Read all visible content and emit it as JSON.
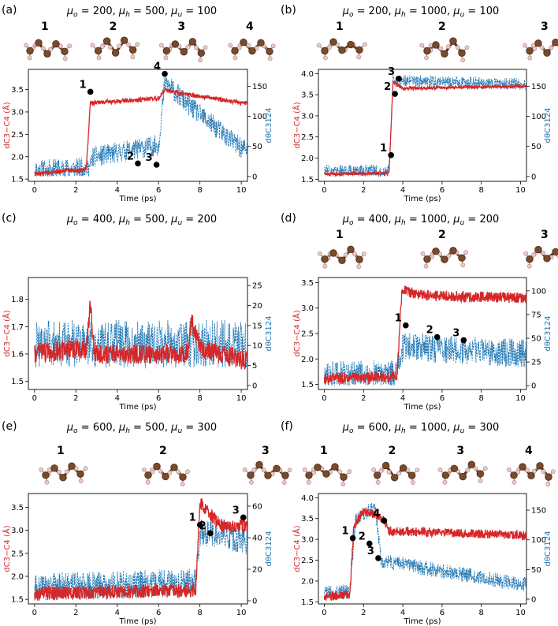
{
  "figure": {
    "colors": {
      "dist": "#d62728",
      "dihedral": "#1f77b4",
      "atom_c": "#7a4a2a",
      "atom_h": "#e8c8c8"
    }
  },
  "chart_data": [
    {
      "id": "a",
      "type": "line",
      "panel_label": "(a)",
      "params_text": "μo = 200, μh = 500, μu = 100",
      "mol_labels": [
        "1",
        "2",
        "3",
        "4"
      ],
      "xlabel": "Time (ps)",
      "ylabel_left": "dC3−C4 (Å)",
      "ylabel_right": "dθC3124",
      "xlim": [
        -0.3,
        10.3
      ],
      "xticks": [
        0,
        2,
        4,
        6,
        8,
        10
      ],
      "xtick_labels": [
        "0",
        "2",
        "4",
        "6",
        "8",
        "10"
      ],
      "ylim_left": [
        1.45,
        3.95
      ],
      "yticks_left": [
        1.5,
        2.0,
        2.5,
        3.0,
        3.5
      ],
      "ytick_labels_left": [
        "1.5",
        "2.0",
        "2.5",
        "3.0",
        "3.5"
      ],
      "ylim_right": [
        -8,
        178
      ],
      "yticks_right": [
        0,
        50,
        100,
        150
      ],
      "ytick_labels_right": [
        "0",
        "50",
        "100",
        "150"
      ],
      "series": [
        {
          "name": "dC3-C4",
          "axis": "left",
          "segments": [
            [
              0,
              1.62
            ],
            [
              2.5,
              1.72
            ],
            [
              2.7,
              3.2
            ],
            [
              6.0,
              3.3
            ],
            [
              6.3,
              3.5
            ],
            [
              7.0,
              3.42
            ],
            [
              10.0,
              3.2
            ]
          ],
          "noise": 0.08
        },
        {
          "name": "dihedral",
          "axis": "right",
          "segments": [
            [
              0,
              3
            ],
            [
              2.7,
              8
            ],
            [
              2.8,
              25
            ],
            [
              6.0,
              45
            ],
            [
              6.3,
              150
            ],
            [
              7.5,
              110
            ],
            [
              10.0,
              40
            ]
          ],
          "noise": 35
        }
      ],
      "points": [
        {
          "label": "1",
          "t": 2.7,
          "y": 3.45
        },
        {
          "label": "2",
          "t": 5.0,
          "y": 1.85
        },
        {
          "label": "3",
          "t": 5.9,
          "y": 1.82
        },
        {
          "label": "4",
          "t": 6.3,
          "y": 3.85
        }
      ]
    },
    {
      "id": "b",
      "type": "line",
      "panel_label": "(b)",
      "params_text": "μo = 200, μh = 1000, μu = 100",
      "mol_labels": [
        "1",
        "2",
        "3"
      ],
      "xlabel": "Time (ps)",
      "ylabel_left": "dC3−C4 (Å)",
      "ylabel_right": "dθC3124",
      "xlim": [
        -0.3,
        10.3
      ],
      "xticks": [
        0,
        2,
        4,
        6,
        8,
        10
      ],
      "xtick_labels": [
        "0",
        "2",
        "4",
        "6",
        "8",
        "10"
      ],
      "ylim_left": [
        1.45,
        4.1
      ],
      "yticks_left": [
        1.5,
        2.0,
        2.5,
        3.0,
        3.5,
        4.0
      ],
      "ytick_labels_left": [
        "1.5",
        "2.0",
        "2.5",
        "3.0",
        "3.5",
        "4.0"
      ],
      "ylim_right": [
        -8,
        178
      ],
      "yticks_right": [
        0,
        50,
        100,
        150
      ],
      "ytick_labels_right": [
        "0",
        "50",
        "100",
        "150"
      ],
      "series": [
        {
          "name": "dC3-C4",
          "axis": "left",
          "segments": [
            [
              0,
              1.62
            ],
            [
              3.3,
              1.65
            ],
            [
              3.5,
              3.8
            ],
            [
              4.0,
              3.65
            ],
            [
              10.0,
              3.7
            ]
          ],
          "noise": 0.06
        },
        {
          "name": "dihedral",
          "axis": "right",
          "segments": [
            [
              0,
              5
            ],
            [
              3.3,
              6
            ],
            [
              3.5,
              155
            ],
            [
              10.0,
              150
            ]
          ],
          "noise": 20
        }
      ],
      "points": [
        {
          "label": "1",
          "t": 3.4,
          "y": 2.07
        },
        {
          "label": "2",
          "t": 3.6,
          "y": 3.52
        },
        {
          "label": "3",
          "t": 3.8,
          "y": 3.88
        }
      ]
    },
    {
      "id": "c",
      "type": "line",
      "panel_label": "(c)",
      "params_text": "μo = 400, μh = 500, μu = 200",
      "mol_labels": [],
      "xlabel": "Time (ps)",
      "ylabel_left": "dC3−C4 (Å)",
      "ylabel_right": "dθC3124",
      "xlim": [
        -0.3,
        10.3
      ],
      "xticks": [
        0,
        2,
        4,
        6,
        8,
        10
      ],
      "xtick_labels": [
        "0",
        "2",
        "4",
        "6",
        "8",
        "10"
      ],
      "ylim_left": [
        1.47,
        1.88
      ],
      "yticks_left": [
        1.5,
        1.6,
        1.7,
        1.8
      ],
      "ytick_labels_left": [
        "1.5",
        "1.6",
        "1.7",
        "1.8"
      ],
      "ylim_right": [
        -1,
        27
      ],
      "yticks_right": [
        0,
        5,
        10,
        15,
        20,
        25
      ],
      "ytick_labels_right": [
        "0",
        "5",
        "10",
        "15",
        "20",
        "25"
      ],
      "series": [
        {
          "name": "dC3-C4",
          "axis": "left",
          "segments": [
            [
              0,
              1.6
            ],
            [
              2.5,
              1.62
            ],
            [
              2.7,
              1.78
            ],
            [
              2.9,
              1.6
            ],
            [
              7.4,
              1.6
            ],
            [
              7.6,
              1.72
            ],
            [
              8.0,
              1.62
            ],
            [
              10.0,
              1.58
            ]
          ],
          "noise": 0.06
        },
        {
          "name": "dihedral",
          "axis": "right",
          "segments": [
            [
              0,
              8
            ],
            [
              10.0,
              8
            ]
          ],
          "noise": 12
        }
      ],
      "points": []
    },
    {
      "id": "d",
      "type": "line",
      "panel_label": "(d)",
      "params_text": "μo = 400, μh = 1000, μu = 200",
      "mol_labels": [
        "1",
        "2",
        "3"
      ],
      "xlabel": "Time (ps)",
      "ylabel_left": "dC3−C4 (Å)",
      "ylabel_right": "dθC3124",
      "xlim": [
        -0.3,
        10.3
      ],
      "xticks": [
        0,
        2,
        4,
        6,
        8,
        10
      ],
      "xtick_labels": [
        "0",
        "2",
        "4",
        "6",
        "8",
        "10"
      ],
      "ylim_left": [
        1.4,
        3.6
      ],
      "yticks_left": [
        1.5,
        2.0,
        2.5,
        3.0,
        3.5
      ],
      "ytick_labels_left": [
        "1.5",
        "2.0",
        "2.5",
        "3.0",
        "3.5"
      ],
      "ylim_right": [
        -4,
        114
      ],
      "yticks_right": [
        0,
        25,
        50,
        75,
        100
      ],
      "ytick_labels_right": [
        "0",
        "25",
        "50",
        "75",
        "100"
      ],
      "series": [
        {
          "name": "dC3-C4",
          "axis": "left",
          "segments": [
            [
              0,
              1.62
            ],
            [
              3.7,
              1.65
            ],
            [
              3.95,
              3.35
            ],
            [
              5.0,
              3.25
            ],
            [
              10.0,
              3.2
            ]
          ],
          "noise": 0.18
        },
        {
          "name": "dihedral",
          "axis": "right",
          "segments": [
            [
              0,
              5
            ],
            [
              3.7,
              6
            ],
            [
              4.0,
              35
            ],
            [
              10.0,
              28
            ]
          ],
          "noise": 30
        }
      ],
      "points": [
        {
          "label": "1",
          "t": 4.15,
          "y": 2.66
        },
        {
          "label": "2",
          "t": 5.75,
          "y": 2.43
        },
        {
          "label": "3",
          "t": 7.1,
          "y": 2.37
        }
      ]
    },
    {
      "id": "e",
      "type": "line",
      "panel_label": "(e)",
      "params_text": "μo = 600, μh = 500, μu = 300",
      "mol_labels": [
        "1",
        "2",
        "3"
      ],
      "xlabel": "Time (ps)",
      "ylabel_left": "dC3−C4 (Å)",
      "ylabel_right": "dθC3124",
      "xlim": [
        -0.3,
        10.3
      ],
      "xticks": [
        0,
        2,
        4,
        6,
        8,
        10
      ],
      "xtick_labels": [
        "0",
        "2",
        "4",
        "6",
        "8",
        "10"
      ],
      "ylim_left": [
        1.4,
        3.8
      ],
      "yticks_left": [
        1.5,
        2.0,
        2.5,
        3.0,
        3.5
      ],
      "ytick_labels_left": [
        "1.5",
        "2.0",
        "2.5",
        "3.0",
        "3.5"
      ],
      "ylim_right": [
        -2,
        68
      ],
      "yticks_right": [
        0,
        20,
        40,
        60
      ],
      "ytick_labels_right": [
        "0",
        "20",
        "40",
        "60"
      ],
      "series": [
        {
          "name": "dC3-C4",
          "axis": "left",
          "segments": [
            [
              0,
              1.62
            ],
            [
              7.8,
              1.7
            ],
            [
              8.0,
              3.6
            ],
            [
              9.0,
              3.1
            ],
            [
              10.2,
              3.1
            ]
          ],
          "noise": 0.25
        },
        {
          "name": "dihedral",
          "axis": "right",
          "segments": [
            [
              0,
              5
            ],
            [
              7.8,
              8
            ],
            [
              8.0,
              40
            ],
            [
              10.2,
              35
            ]
          ],
          "noise": 18
        }
      ],
      "points": [
        {
          "label": "1",
          "t": 8.0,
          "y": 3.12
        },
        {
          "label": "2",
          "t": 8.5,
          "y": 2.94
        },
        {
          "label": "3",
          "t": 10.1,
          "y": 3.28
        }
      ]
    },
    {
      "id": "f",
      "type": "line",
      "panel_label": "(f)",
      "params_text": "μo = 600, μh = 1000, μu = 300",
      "mol_labels": [
        "1",
        "2",
        "3",
        "4"
      ],
      "xlabel": "Time (ps)",
      "ylabel_left": "dC3−C4 (Å)",
      "ylabel_right": "dθC3124",
      "xlim": [
        -0.3,
        10.3
      ],
      "xticks": [
        0,
        2,
        4,
        6,
        8,
        10
      ],
      "xtick_labels": [
        "0",
        "2",
        "4",
        "6",
        "8",
        "10"
      ],
      "ylim_left": [
        1.45,
        4.1
      ],
      "yticks_left": [
        1.5,
        2.0,
        2.5,
        3.0,
        3.5,
        4.0
      ],
      "ytick_labels_left": [
        "1.5",
        "2.0",
        "2.5",
        "3.0",
        "3.5",
        "4.0"
      ],
      "ylim_right": [
        -8,
        178
      ],
      "yticks_right": [
        0,
        50,
        100,
        150
      ],
      "ytick_labels_right": [
        "0",
        "50",
        "100",
        "150"
      ],
      "series": [
        {
          "name": "dC3-C4",
          "axis": "left",
          "segments": [
            [
              0,
              1.62
            ],
            [
              1.3,
              1.68
            ],
            [
              1.5,
              3.3
            ],
            [
              2.0,
              3.7
            ],
            [
              3.0,
              3.5
            ],
            [
              3.3,
              3.2
            ],
            [
              10.0,
              3.1
            ]
          ],
          "noise": 0.18
        },
        {
          "name": "dihedral",
          "axis": "right",
          "segments": [
            [
              0,
              5
            ],
            [
              1.3,
              8
            ],
            [
              1.6,
              130
            ],
            [
              2.6,
              150
            ],
            [
              2.9,
              60
            ],
            [
              10.0,
              20
            ]
          ],
          "noise": 25
        }
      ],
      "points": [
        {
          "label": "1",
          "t": 1.45,
          "y": 3.03
        },
        {
          "label": "2",
          "t": 2.3,
          "y": 2.9
        },
        {
          "label": "3",
          "t": 2.75,
          "y": 2.55
        },
        {
          "label": "4",
          "t": 3.05,
          "y": 3.45
        }
      ]
    }
  ]
}
